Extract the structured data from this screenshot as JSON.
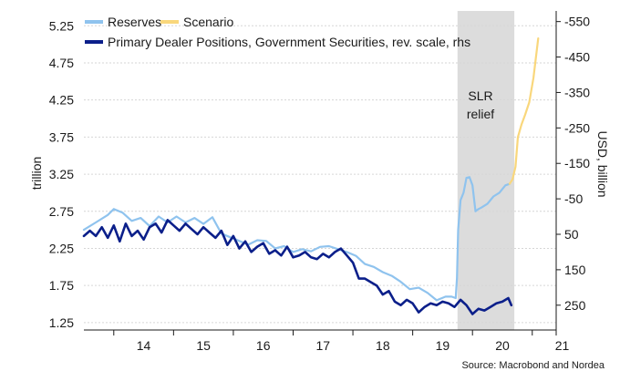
{
  "chart_data": {
    "type": "line",
    "source": "Source: Macrobond and Nordea",
    "shaded_region": {
      "x_start": 19.75,
      "x_end": 20.7,
      "label_lines": [
        "SLR",
        "relief"
      ]
    },
    "x_ticks": [
      "14",
      "15",
      "16",
      "17",
      "18",
      "19",
      "20",
      "21"
    ],
    "left_axis": {
      "label": "trillion",
      "range": [
        1.15,
        5.45
      ],
      "ticks": [
        "1.25",
        "1.75",
        "2.25",
        "2.75",
        "3.25",
        "3.75",
        "4.25",
        "4.75",
        "5.25"
      ]
    },
    "right_axis": {
      "label": "USD, billion",
      "reversed": true,
      "range": [
        320,
        -580
      ],
      "ticks": [
        "250",
        "150",
        "50",
        "-50",
        "-150",
        "-250",
        "-350",
        "-450",
        "-550"
      ]
    },
    "legend": [
      {
        "name": "Reserves",
        "color": "#8fc3ee"
      },
      {
        "name": "Scenario",
        "color": "#f9d77c"
      },
      {
        "name": "Primary Dealer Positions, Government Securities, rev. scale, rhs",
        "color": "#0b1f8a"
      }
    ],
    "series": [
      {
        "name": "Reserves",
        "axis": "left",
        "color": "#8fc3ee",
        "x": [
          13.5,
          13.7,
          13.9,
          14.0,
          14.15,
          14.3,
          14.45,
          14.6,
          14.75,
          14.9,
          15.05,
          15.2,
          15.35,
          15.5,
          15.65,
          15.8,
          15.95,
          16.1,
          16.25,
          16.4,
          16.55,
          16.7,
          16.85,
          17.0,
          17.15,
          17.3,
          17.45,
          17.6,
          17.75,
          17.9,
          18.05,
          18.2,
          18.35,
          18.5,
          18.65,
          18.8,
          18.95,
          19.1,
          19.25,
          19.4,
          19.55,
          19.65,
          19.72,
          19.74,
          19.76,
          19.8,
          19.85,
          19.9,
          19.95,
          20.0,
          20.05,
          20.1,
          20.15,
          20.25,
          20.35,
          20.45,
          20.55,
          20.62
        ],
        "values": [
          2.5,
          2.6,
          2.7,
          2.78,
          2.73,
          2.62,
          2.66,
          2.55,
          2.68,
          2.6,
          2.68,
          2.6,
          2.66,
          2.58,
          2.67,
          2.45,
          2.4,
          2.35,
          2.3,
          2.36,
          2.35,
          2.25,
          2.28,
          2.2,
          2.24,
          2.21,
          2.27,
          2.28,
          2.24,
          2.2,
          2.15,
          2.04,
          2.0,
          1.93,
          1.88,
          1.8,
          1.7,
          1.72,
          1.65,
          1.55,
          1.6,
          1.6,
          1.58,
          1.85,
          2.5,
          2.9,
          3.0,
          3.2,
          3.21,
          3.1,
          2.75,
          2.78,
          2.8,
          2.85,
          2.95,
          3.0,
          3.1,
          3.12
        ]
      },
      {
        "name": "Scenario",
        "axis": "left",
        "color": "#f9d77c",
        "x": [
          20.62,
          20.67,
          20.72,
          20.76,
          20.82,
          20.88,
          20.95,
          21.02,
          21.1
        ],
        "values": [
          3.12,
          3.18,
          3.35,
          3.75,
          3.92,
          4.05,
          4.22,
          4.55,
          5.08
        ]
      },
      {
        "name": "Primary Dealer Positions, Government Securities, rev. scale, rhs",
        "axis": "right",
        "color": "#0b1f8a",
        "x": [
          13.5,
          13.6,
          13.7,
          13.8,
          13.9,
          14.0,
          14.1,
          14.2,
          14.3,
          14.4,
          14.5,
          14.6,
          14.7,
          14.8,
          14.9,
          15.0,
          15.1,
          15.2,
          15.3,
          15.4,
          15.5,
          15.6,
          15.7,
          15.8,
          15.9,
          16.0,
          16.1,
          16.2,
          16.3,
          16.4,
          16.5,
          16.6,
          16.7,
          16.8,
          16.9,
          17.0,
          17.1,
          17.2,
          17.3,
          17.4,
          17.5,
          17.6,
          17.7,
          17.8,
          17.9,
          18.0,
          18.1,
          18.2,
          18.3,
          18.4,
          18.5,
          18.6,
          18.7,
          18.8,
          18.9,
          19.0,
          19.1,
          19.2,
          19.3,
          19.4,
          19.5,
          19.6,
          19.7,
          19.8,
          19.9,
          20.0,
          20.1,
          20.2,
          20.3,
          20.4,
          20.5,
          20.6,
          20.65
        ],
        "values": [
          55,
          40,
          55,
          30,
          60,
          25,
          70,
          20,
          55,
          40,
          65,
          30,
          20,
          45,
          10,
          25,
          40,
          20,
          35,
          50,
          30,
          45,
          60,
          40,
          80,
          55,
          90,
          70,
          100,
          85,
          75,
          105,
          95,
          110,
          85,
          115,
          110,
          100,
          115,
          120,
          105,
          115,
          100,
          90,
          110,
          130,
          175,
          175,
          185,
          195,
          220,
          210,
          240,
          250,
          235,
          245,
          270,
          255,
          245,
          250,
          240,
          245,
          255,
          235,
          250,
          275,
          260,
          265,
          255,
          245,
          240,
          230,
          250
        ]
      }
    ]
  }
}
